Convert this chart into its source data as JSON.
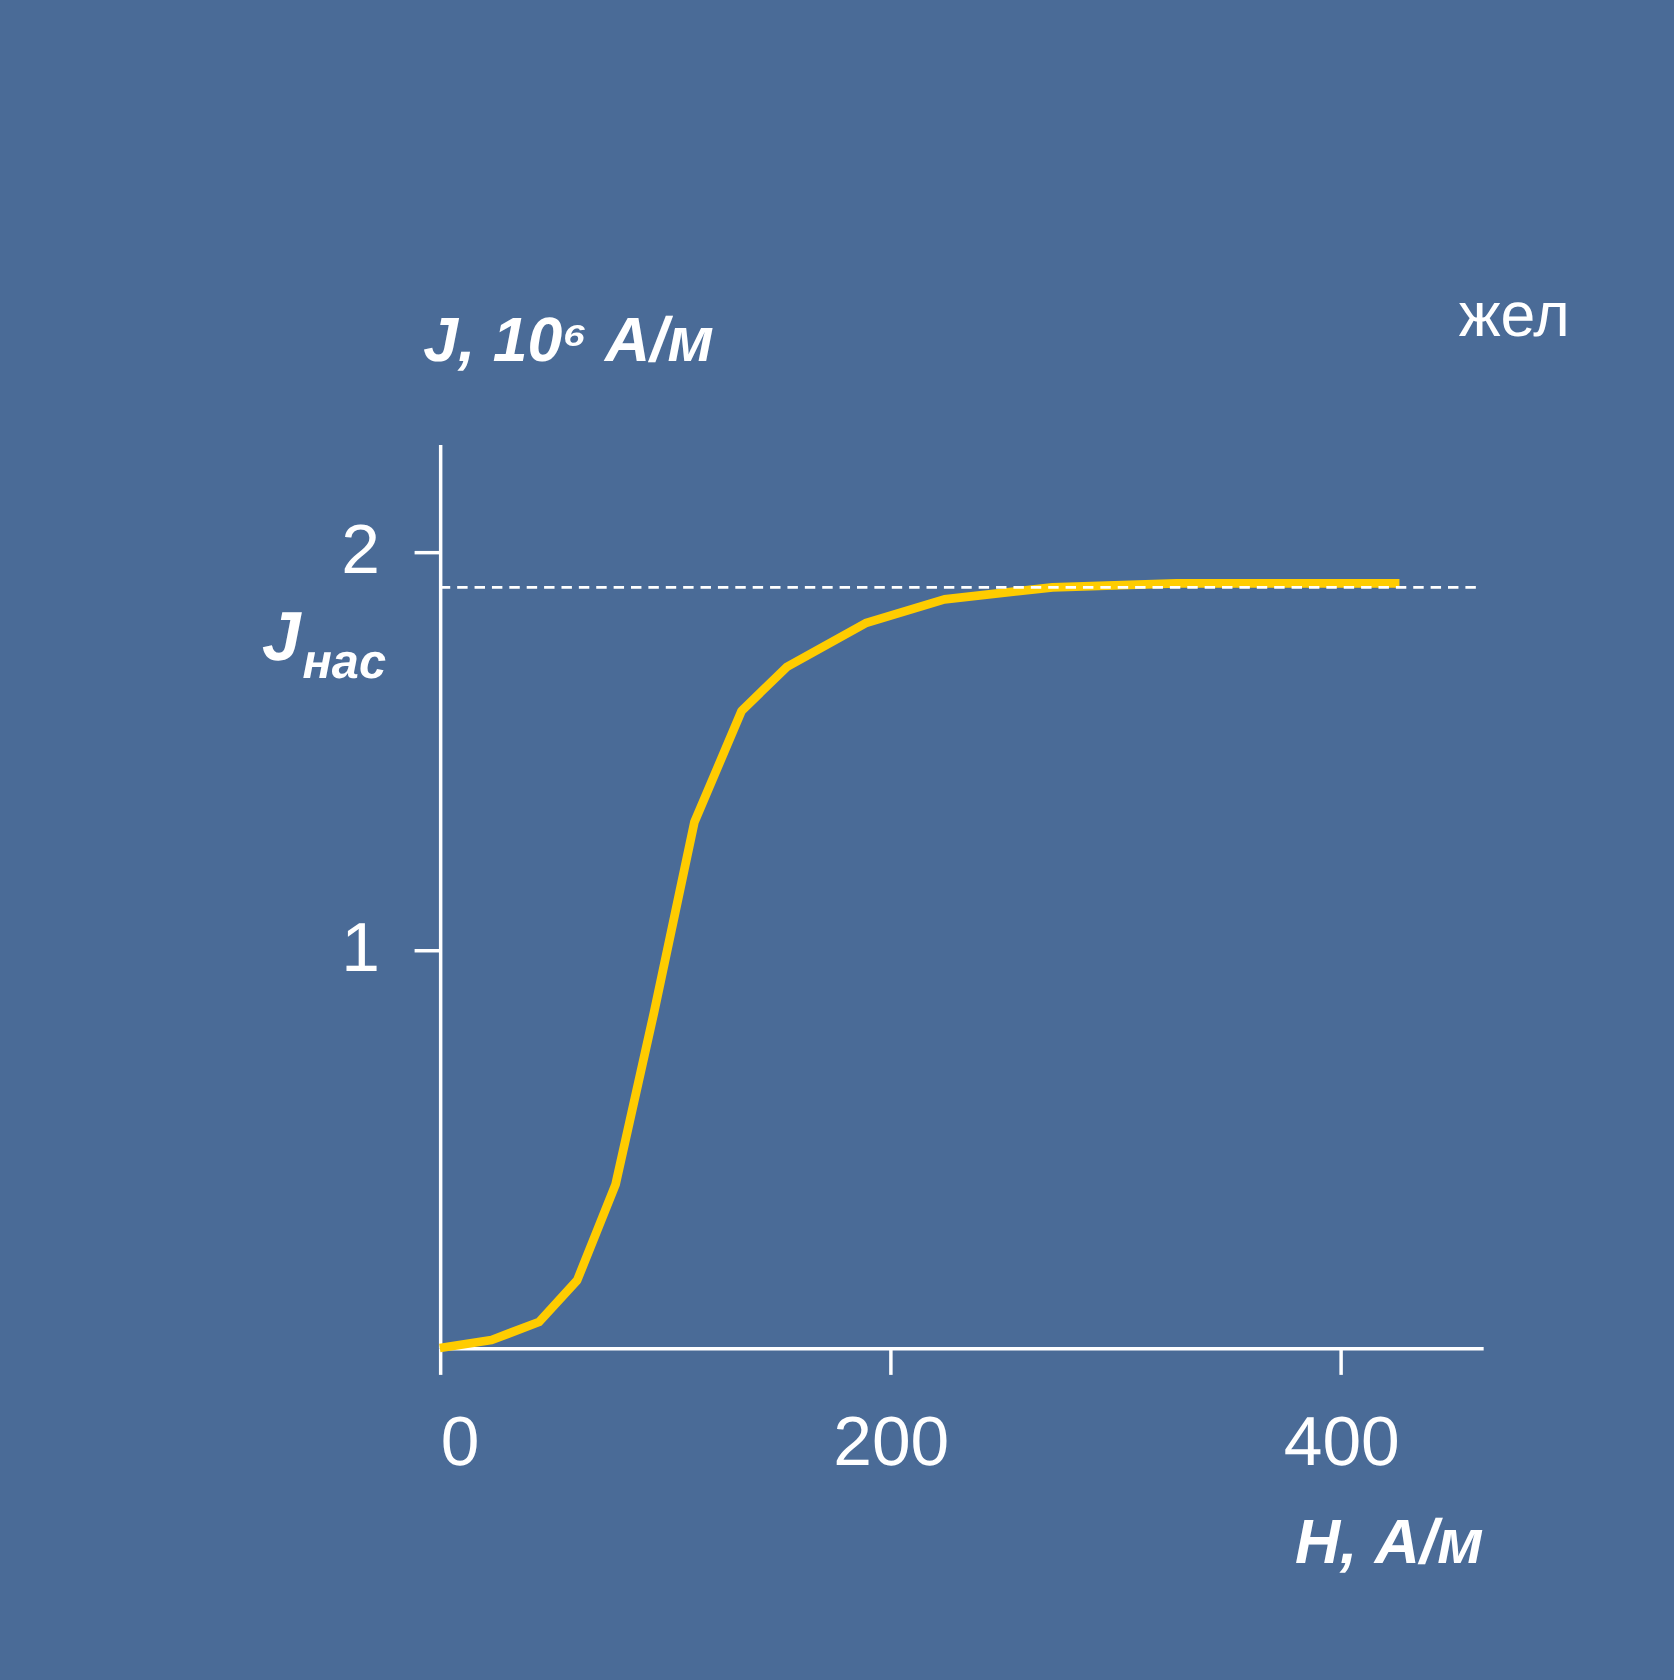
{
  "chart_data": {
    "type": "line",
    "xlabel": "H, А/м",
    "ylabel": "J, 10⁶ А/м",
    "x": [
      0,
      23,
      44,
      61,
      78,
      95,
      113,
      134,
      154,
      189,
      224,
      272,
      327,
      370,
      426
    ],
    "series": [
      {
        "color": "#ffcc00",
        "values": [
          0,
          0.02,
          0.065,
          0.17,
          0.41,
          0.84,
          1.32,
          1.6,
          1.71,
          1.82,
          1.88,
          1.91,
          1.92,
          1.92,
          1.92
        ]
      }
    ],
    "xlim": [
      0,
      463
    ],
    "ylim": [
      0,
      2.27
    ],
    "xticks": [
      0,
      200,
      400
    ],
    "yticks": [
      1,
      2
    ],
    "ref_lines": [
      {
        "axis": "y",
        "value": 1.91,
        "label": "J$_{нас}$",
        "color": "#ffffff",
        "line_style": "dashed"
      }
    ],
    "annotations": [
      "жел"
    ],
    "grid": false,
    "marker": "none",
    "line_style": "solid"
  }
}
